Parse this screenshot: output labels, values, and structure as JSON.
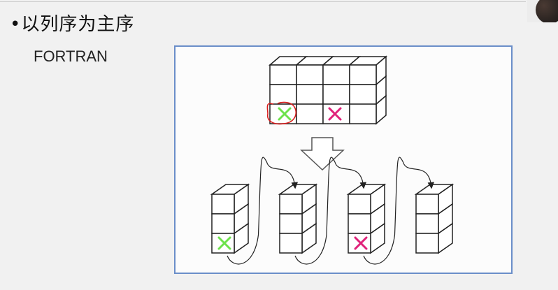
{
  "slide": {
    "title": "•以列序为主序",
    "subtitle": "FORTRAN"
  },
  "figure": {
    "grid": {
      "rows": 3,
      "cols": 4
    },
    "columns_count": 4,
    "marks": {
      "green_cross": {
        "color": "#6de24b",
        "grid_row": 3,
        "grid_col": 1,
        "column": 1,
        "cell": 3
      },
      "magenta_cross": {
        "color": "#e0217a",
        "grid_row": 3,
        "grid_col": 3,
        "column": 3,
        "cell": 3
      }
    },
    "annotation_color": "#d81b1b",
    "frame_color": "#6a8ec9"
  }
}
